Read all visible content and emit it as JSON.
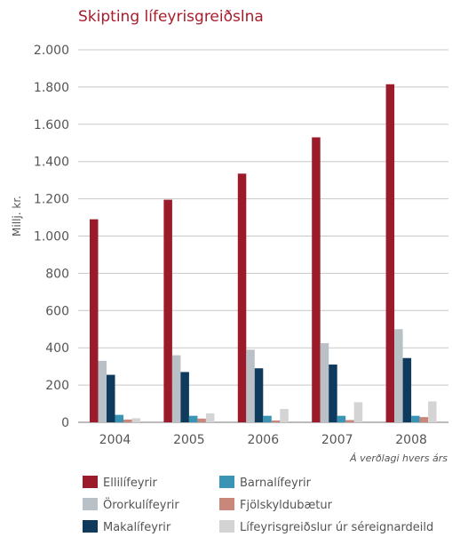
{
  "chart_data": {
    "type": "bar",
    "title": "Skipting lífeyrisgreiðslna",
    "ylabel": "Millj. kr.",
    "xlabel": "",
    "note": "Á verðlagi hvers árs",
    "categories": [
      "2004",
      "2005",
      "2006",
      "2007",
      "2008"
    ],
    "ylim": [
      0,
      2000
    ],
    "yticks": [
      0,
      200,
      400,
      600,
      800,
      1000,
      1200,
      1400,
      1600,
      1800,
      2000
    ],
    "ytick_labels": [
      "0",
      "200",
      "400",
      "600",
      "800",
      "1.000",
      "1.200",
      "1.400",
      "1.600",
      "1.800",
      "2.000"
    ],
    "grid": "horizontal",
    "legend_position": "bottom",
    "series": [
      {
        "name": "Ellilífeyrir",
        "color": "#9b1b2a",
        "values": [
          1090,
          1195,
          1335,
          1530,
          1815
        ]
      },
      {
        "name": "Örorkulífeyrir",
        "color": "#b9c1c6",
        "values": [
          330,
          360,
          390,
          425,
          500
        ]
      },
      {
        "name": "Makalífeyrir",
        "color": "#0e3a5e",
        "values": [
          255,
          270,
          290,
          310,
          345
        ]
      },
      {
        "name": "Barnalífeyrir",
        "color": "#3a95b5",
        "values": [
          40,
          35,
          35,
          35,
          35
        ]
      },
      {
        "name": "Fjölskyldubætur",
        "color": "#c9867a",
        "values": [
          15,
          20,
          10,
          12,
          28
        ]
      },
      {
        "name": "Lífeyrisgreiðslur úr séreignardeild",
        "color": "#d4d4d4",
        "values": [
          22,
          48,
          72,
          108,
          112
        ]
      }
    ]
  }
}
